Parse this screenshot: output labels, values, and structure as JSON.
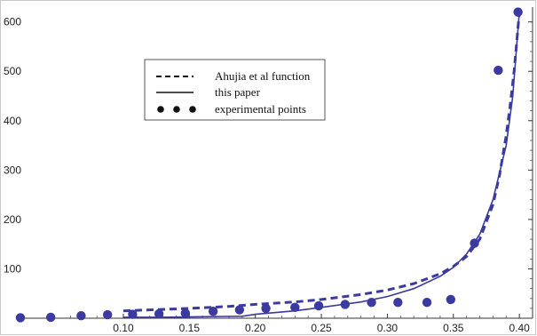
{
  "chart_data": {
    "type": "line",
    "title": "",
    "xlabel": "",
    "ylabel": "",
    "xlim": [
      0.02,
      0.41
    ],
    "ylim": [
      0,
      630
    ],
    "x_ticks": [
      0.1,
      0.15,
      0.2,
      0.25,
      0.3,
      0.35,
      0.4
    ],
    "x_tick_labels": [
      "0.10",
      "0.15",
      "0.20",
      "0.25",
      "0.30",
      "0.35",
      "0.40"
    ],
    "y_ticks": [
      100,
      200,
      300,
      400,
      500,
      600
    ],
    "y_tick_labels": [
      "100",
      "200",
      "300",
      "400",
      "500",
      "600"
    ],
    "grid": false,
    "legend_position": "upper-left-center",
    "series": [
      {
        "name": "Ahujia et al function",
        "style": "dashed",
        "color": "#3a3aa0",
        "x": [
          0.1,
          0.12,
          0.15,
          0.18,
          0.2,
          0.23,
          0.25,
          0.28,
          0.3,
          0.32,
          0.34,
          0.35,
          0.36,
          0.37,
          0.38,
          0.385,
          0.39,
          0.393,
          0.396,
          0.398,
          0.4
        ],
        "y": [
          15,
          17,
          20,
          24,
          28,
          33,
          38,
          48,
          57,
          70,
          90,
          105,
          125,
          160,
          230,
          290,
          370,
          430,
          500,
          560,
          620
        ]
      },
      {
        "name": "this paper",
        "style": "solid",
        "color": "#3a3aa0",
        "x": [
          0.1,
          0.13,
          0.16,
          0.19,
          0.2,
          0.23,
          0.25,
          0.28,
          0.3,
          0.32,
          0.34,
          0.35,
          0.36,
          0.37,
          0.38,
          0.39,
          0.395,
          0.4
        ],
        "y": [
          2,
          2,
          3,
          4,
          8,
          15,
          22,
          33,
          44,
          60,
          85,
          103,
          130,
          170,
          240,
          350,
          450,
          620
        ]
      },
      {
        "name": "experimental points",
        "style": "markers",
        "color": "#3a3aa0",
        "x": [
          0.022,
          0.045,
          0.068,
          0.088,
          0.107,
          0.127,
          0.147,
          0.168,
          0.188,
          0.208,
          0.23,
          0.248,
          0.268,
          0.288,
          0.308,
          0.33,
          0.348,
          0.366,
          0.384,
          0.399
        ],
        "y": [
          1,
          2,
          5,
          7,
          8,
          9,
          10,
          14,
          17,
          20,
          22,
          25,
          28,
          32,
          32,
          32,
          38,
          152,
          502,
          620
        ]
      }
    ]
  },
  "legend": {
    "items": [
      {
        "label": "Ahujia et al function",
        "style": "dashed"
      },
      {
        "label": "this paper",
        "style": "solid"
      },
      {
        "label": "experimental points",
        "style": "markers"
      }
    ]
  }
}
